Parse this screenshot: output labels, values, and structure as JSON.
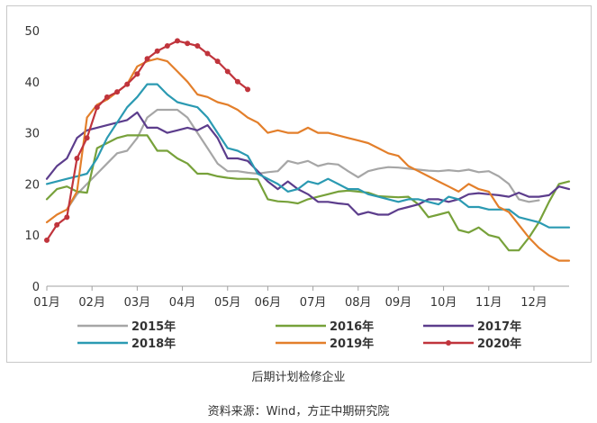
{
  "caption": "后期计划检修企业",
  "source": "资料来源：Wind，方正中期研究院",
  "chart_data": {
    "type": "line",
    "title": "后期计划检修企业",
    "xlabel": "",
    "ylabel": "",
    "xlim": [
      0,
      52
    ],
    "ylim": [
      0,
      50
    ],
    "y_ticks": [
      0,
      10,
      20,
      30,
      40,
      50
    ],
    "categories": [
      "01月",
      "02月",
      "03月",
      "04月",
      "05月",
      "06月",
      "07月",
      "08月",
      "09月",
      "10月",
      "11月",
      "12月"
    ],
    "category_positions": [
      0,
      4.5,
      9,
      13.5,
      18,
      22,
      26.5,
      31,
      35,
      39.5,
      44,
      48.5
    ],
    "x": [
      0,
      1,
      2,
      3,
      4,
      5,
      6,
      7,
      8,
      9,
      10,
      11,
      12,
      13,
      14,
      15,
      16,
      17,
      18,
      19,
      20,
      21,
      22,
      23,
      24,
      25,
      26,
      27,
      28,
      29,
      30,
      31,
      32,
      33,
      34,
      35,
      36,
      37,
      38,
      39,
      40,
      41,
      42,
      43,
      44,
      45,
      46,
      47,
      48,
      49,
      50,
      51,
      52
    ],
    "series": [
      {
        "name": "2015年",
        "color": "#a6a6a6",
        "marker": false,
        "values": [
          null,
          null,
          15,
          18,
          20,
          22,
          24,
          26,
          26.5,
          29,
          33,
          34.5,
          34.5,
          34.5,
          33,
          30,
          27,
          24,
          22.5,
          22.5,
          22.2,
          22,
          22.3,
          22.5,
          24.5,
          24,
          24.5,
          23.5,
          24,
          23.8,
          22.5,
          21.3,
          22.5,
          23,
          23.3,
          23.2,
          23,
          22.8,
          22.6,
          22.5,
          22.7,
          22.5,
          22.8,
          22.3,
          22.5,
          21.5,
          20,
          17,
          16.5,
          16.8,
          null,
          null,
          null
        ]
      },
      {
        "name": "2016年",
        "color": "#77a13a",
        "marker": false,
        "values": [
          17,
          19,
          19.5,
          18.5,
          18.3,
          27,
          28,
          29,
          29.5,
          29.5,
          29.5,
          26.5,
          26.5,
          25,
          24,
          22,
          22,
          21.5,
          21.2,
          21,
          21,
          20.9,
          17,
          16.6,
          16.5,
          16.2,
          17,
          17.5,
          18,
          18.5,
          18.7,
          18.5,
          18.3,
          17.6,
          17.5,
          17.4,
          17.5,
          16,
          13.5,
          14,
          14.5,
          11,
          10.5,
          11.5,
          10,
          9.5,
          7,
          7,
          9.5,
          12.5,
          16.5,
          20,
          20.5
        ]
      },
      {
        "name": "2017年",
        "color": "#5c3d8c",
        "marker": false,
        "values": [
          21,
          23.5,
          25,
          29,
          30.5,
          31,
          31.5,
          32,
          32.5,
          34,
          31,
          31,
          30,
          30.5,
          31,
          30.5,
          31.5,
          29,
          25,
          25,
          24.5,
          22.5,
          20.5,
          19,
          20.5,
          19,
          18,
          16.5,
          16.5,
          16.2,
          16,
          14,
          14.5,
          14,
          14,
          15,
          15.5,
          16,
          17,
          17,
          16.5,
          17,
          18,
          18.2,
          18,
          17.8,
          17.5,
          18.3,
          17.5,
          17.5,
          17.8,
          19.5,
          19
        ]
      },
      {
        "name": "2018年",
        "color": "#2b9ab2",
        "marker": false,
        "values": [
          20,
          20.5,
          21,
          21.5,
          22,
          25,
          29,
          32,
          35,
          37,
          39.5,
          39.5,
          37.5,
          36,
          35.5,
          35,
          33,
          30,
          27,
          26.5,
          25.5,
          22,
          21,
          20,
          18.5,
          19,
          20.5,
          20,
          21,
          20,
          19,
          19,
          18,
          17.5,
          17,
          16.5,
          17,
          17,
          16.5,
          16,
          17.5,
          17,
          15.5,
          15.5,
          15,
          15,
          15,
          13.5,
          13,
          12.5,
          11.5,
          11.5,
          11.5
        ]
      },
      {
        "name": "2019年",
        "color": "#e37f2b",
        "marker": false,
        "values": [
          12.5,
          14,
          15,
          18.5,
          33,
          35.5,
          36.5,
          38,
          39.5,
          43,
          44,
          44.5,
          44,
          42,
          40,
          37.5,
          37,
          36,
          35.5,
          34.5,
          33,
          32,
          30,
          30.5,
          30,
          30,
          31,
          30,
          30,
          29.5,
          29,
          28.5,
          28,
          27,
          26,
          25.5,
          23.5,
          22.5,
          21.5,
          20.5,
          19.5,
          18.5,
          20,
          19,
          18.5,
          15.5,
          14.5,
          12,
          9.5,
          7.5,
          6,
          5,
          5
        ]
      },
      {
        "name": "2020年",
        "color": "#c0343c",
        "marker": true,
        "values": [
          9,
          12,
          13.5,
          25,
          29,
          35,
          37,
          38,
          39.5,
          41.5,
          44.5,
          46,
          47,
          48,
          47.5,
          47,
          45.5,
          44,
          42,
          40,
          38.5,
          null,
          null,
          null,
          null,
          null,
          null,
          null,
          null,
          null,
          null,
          null,
          null,
          null,
          null,
          null,
          null,
          null,
          null,
          null,
          null,
          null,
          null,
          null,
          null,
          null,
          null,
          null,
          null,
          null,
          null,
          null,
          null
        ]
      }
    ],
    "legend": {
      "placement": "bottom",
      "columns": 3
    }
  }
}
